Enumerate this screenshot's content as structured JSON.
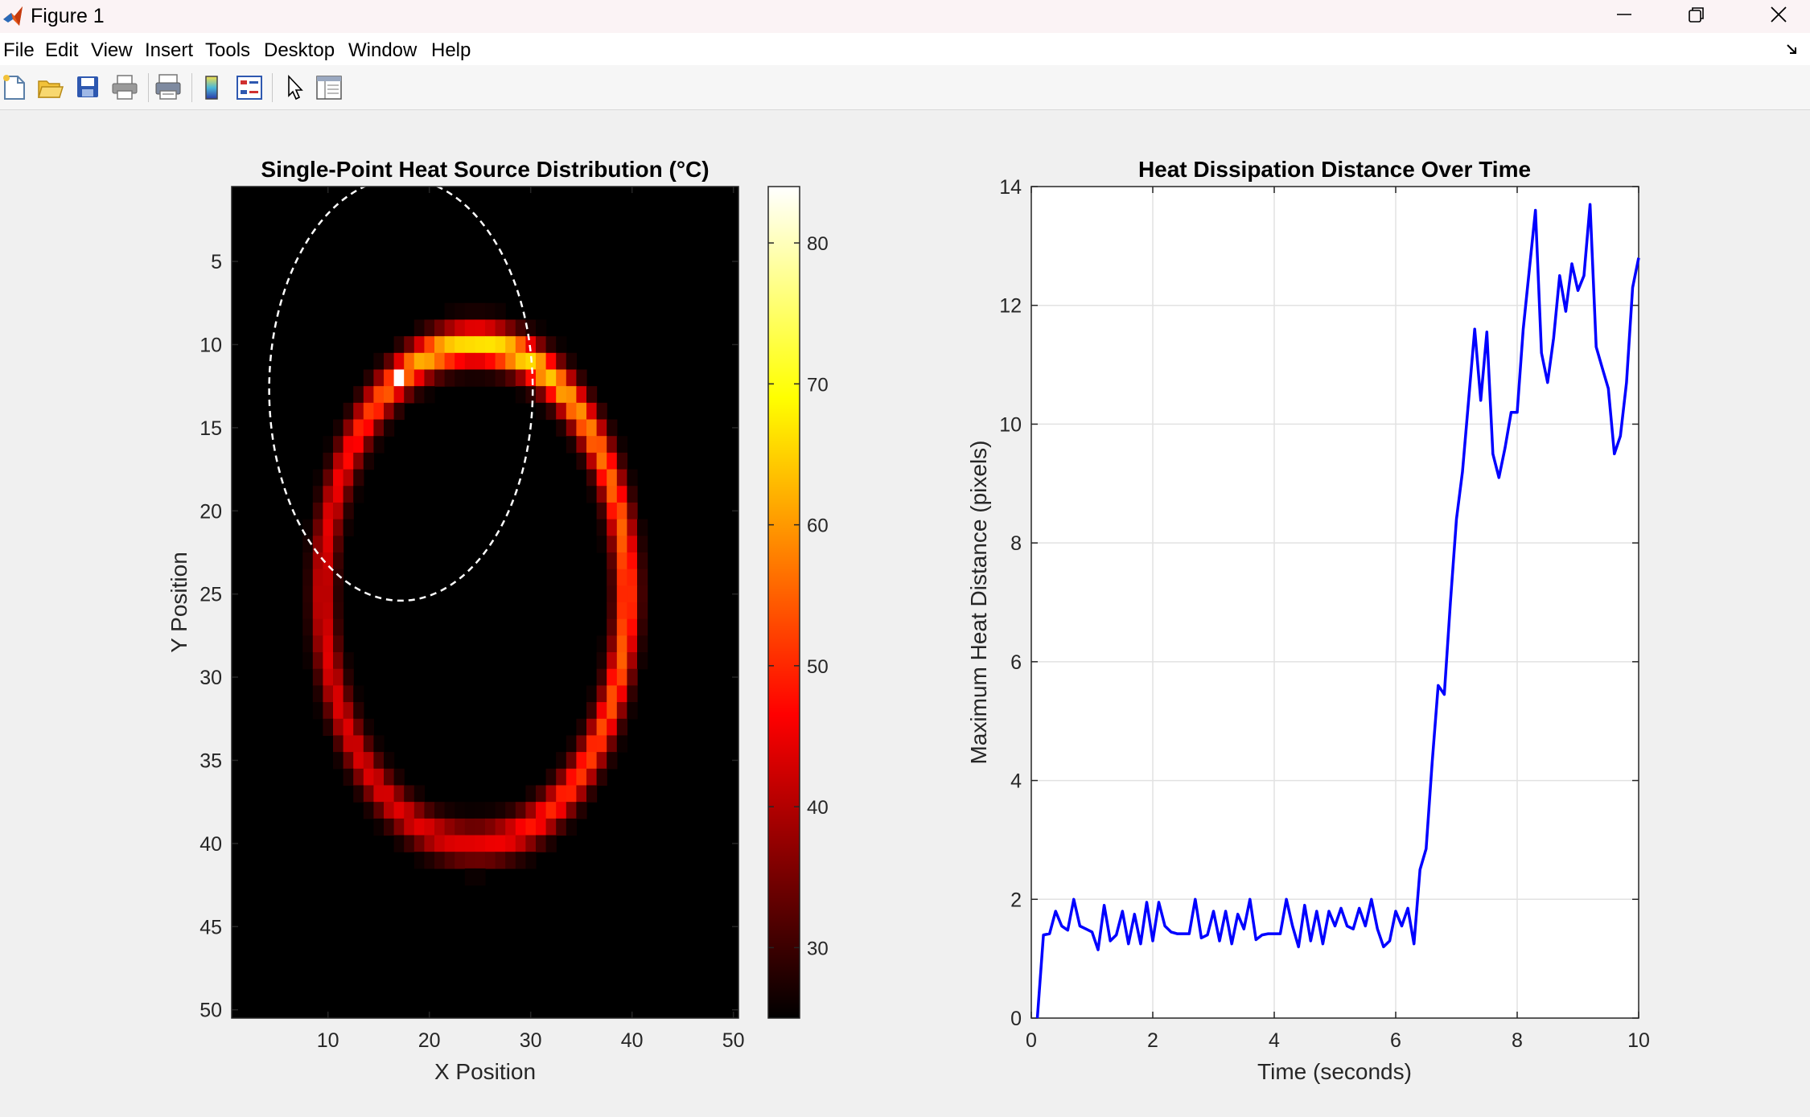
{
  "window": {
    "title": "Figure 1",
    "icon": "matlab-logo-icon"
  },
  "menubar": {
    "items": [
      "File",
      "Edit",
      "View",
      "Insert",
      "Tools",
      "Desktop",
      "Window",
      "Help"
    ]
  },
  "toolbar": {
    "buttons": [
      "new-figure-icon",
      "open-file-icon",
      "save-icon",
      "print-icon",
      "print-preview-icon",
      "colorbar-icon",
      "legend-icon",
      "pointer-icon",
      "property-inspector-icon"
    ]
  },
  "chart_data": [
    {
      "type": "heatmap",
      "title": "Single-Point Heat Source Distribution (°C)",
      "xlabel": "X Position",
      "ylabel": "Y Position",
      "xlim": [
        0.5,
        50.5
      ],
      "ylim": [
        0.5,
        50.5
      ],
      "y_reversed": true,
      "x_ticks": [
        10,
        20,
        30,
        40,
        50
      ],
      "y_ticks": [
        5,
        10,
        15,
        20,
        25,
        30,
        35,
        40,
        45,
        50
      ],
      "colormap": "hot",
      "clim": [
        25,
        84
      ],
      "colorbar_ticks": [
        30,
        40,
        50,
        60,
        70,
        80
      ],
      "ring": {
        "center_x": 24.5,
        "center_y": 25,
        "radius_x": 15,
        "radius_y": 15,
        "temperature_range": [
          30,
          82
        ]
      },
      "hotspot": {
        "x": 17,
        "y": 12,
        "temperature": 84
      },
      "annotation_ellipse": {
        "center_x": 17.2,
        "center_y": 12.7,
        "radius_x": 13,
        "radius_y": 12.7,
        "style": "dashed white"
      },
      "grid": false
    },
    {
      "type": "line",
      "title": "Heat Dissipation Distance Over Time",
      "xlabel": "Time (seconds)",
      "ylabel": "Maximum Heat Distance (pixels)",
      "xlim": [
        0,
        10
      ],
      "ylim": [
        0,
        14
      ],
      "x_ticks": [
        0,
        2,
        4,
        6,
        8,
        10
      ],
      "y_ticks": [
        0,
        2,
        4,
        6,
        8,
        10,
        12,
        14
      ],
      "grid": true,
      "series": [
        {
          "color": "#0000ff",
          "x": [
            0.1,
            0.2,
            0.3,
            0.4,
            0.5,
            0.6,
            0.7,
            0.8,
            0.9,
            1.0,
            1.1,
            1.2,
            1.3,
            1.4,
            1.5,
            1.6,
            1.7,
            1.8,
            1.9,
            2.0,
            2.1,
            2.2,
            2.3,
            2.4,
            2.5,
            2.6,
            2.7,
            2.8,
            2.9,
            3.0,
            3.1,
            3.2,
            3.3,
            3.4,
            3.5,
            3.6,
            3.7,
            3.8,
            3.9,
            4.0,
            4.1,
            4.2,
            4.3,
            4.4,
            4.5,
            4.6,
            4.7,
            4.8,
            4.9,
            5.0,
            5.1,
            5.2,
            5.3,
            5.4,
            5.5,
            5.6,
            5.7,
            5.8,
            5.9,
            6.0,
            6.1,
            6.2,
            6.3,
            6.4,
            6.5,
            6.6,
            6.7,
            6.8,
            6.9,
            7.0,
            7.1,
            7.2,
            7.3,
            7.4,
            7.5,
            7.6,
            7.7,
            7.8,
            7.9,
            8.0,
            8.1,
            8.2,
            8.3,
            8.4,
            8.5,
            8.6,
            8.7,
            8.8,
            8.9,
            9.0,
            9.1,
            9.2,
            9.3,
            9.4,
            9.5,
            9.6,
            9.7,
            9.8,
            9.9,
            10.0
          ],
          "y": [
            0.0,
            1.4,
            1.42,
            1.8,
            1.55,
            1.48,
            2.0,
            1.55,
            1.5,
            1.45,
            1.15,
            1.9,
            1.3,
            1.4,
            1.8,
            1.25,
            1.75,
            1.25,
            1.95,
            1.3,
            1.95,
            1.55,
            1.45,
            1.42,
            1.42,
            1.42,
            2.0,
            1.35,
            1.4,
            1.8,
            1.3,
            1.8,
            1.25,
            1.75,
            1.5,
            2.0,
            1.32,
            1.4,
            1.42,
            1.42,
            1.42,
            2.0,
            1.55,
            1.2,
            1.9,
            1.3,
            1.8,
            1.25,
            1.8,
            1.55,
            1.85,
            1.55,
            1.5,
            1.85,
            1.55,
            2.0,
            1.5,
            1.2,
            1.3,
            1.8,
            1.55,
            1.85,
            1.25,
            2.5,
            2.85,
            4.3,
            5.6,
            5.45,
            7.0,
            8.4,
            9.2,
            10.4,
            11.6,
            10.4,
            11.55,
            9.5,
            9.1,
            9.6,
            10.2,
            10.2,
            11.6,
            12.6,
            13.6,
            11.2,
            10.7,
            11.45,
            12.5,
            11.9,
            12.7,
            12.25,
            12.5,
            13.7,
            11.3,
            10.95,
            10.6,
            9.5,
            9.8,
            10.7,
            12.3,
            12.8
          ]
        }
      ]
    }
  ]
}
